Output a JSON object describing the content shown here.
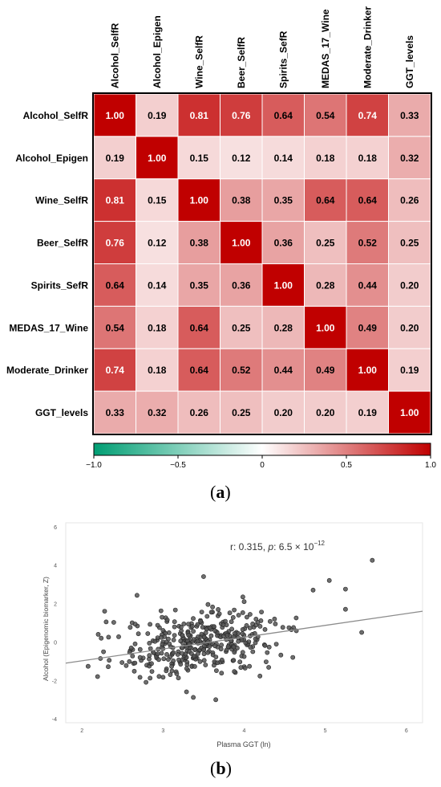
{
  "panel_a_label": {
    "open": "(",
    "letter": "a",
    "close": ")"
  },
  "panel_b_label": {
    "open": "(",
    "letter": "b",
    "close": ")"
  },
  "chart_data": [
    {
      "type": "heatmap",
      "variables": [
        "Alcohol_SelfR",
        "Alcohol_Epigen",
        "Wine_SelfR",
        "Beer_SelfR",
        "Spirits_SefR",
        "MEDAS_17_Wine",
        "Moderate_Drinker",
        "GGT_levels"
      ],
      "column_labels": [
        "Alcohol_SelfR",
        "Alcohol_Epigen",
        "Wine_SelfR",
        "Beer_SelfR",
        "Spirits_SefR",
        "MEDAS_17_Wine",
        "Moderate_Drinker",
        "GGT_levels"
      ],
      "row_labels": [
        "Alcohol_SelfR",
        "Alcohol_Epigen",
        "Wine_SelfR",
        "Beer_SelfR",
        "Spirits_SefR",
        "MEDAS_17_Wine",
        "Moderate_Drinker",
        "GGT_levels"
      ],
      "values": [
        [
          1.0,
          0.19,
          0.81,
          0.76,
          0.64,
          0.54,
          0.74,
          0.33
        ],
        [
          0.19,
          1.0,
          0.15,
          0.12,
          0.14,
          0.18,
          0.18,
          0.32
        ],
        [
          0.81,
          0.15,
          1.0,
          0.38,
          0.35,
          0.64,
          0.64,
          0.26
        ],
        [
          0.76,
          0.12,
          0.38,
          1.0,
          0.36,
          0.25,
          0.52,
          0.25
        ],
        [
          0.64,
          0.14,
          0.35,
          0.36,
          1.0,
          0.28,
          0.44,
          0.2
        ],
        [
          0.54,
          0.18,
          0.64,
          0.25,
          0.28,
          1.0,
          0.49,
          0.2
        ],
        [
          0.74,
          0.18,
          0.64,
          0.52,
          0.44,
          0.49,
          1.0,
          0.19
        ],
        [
          0.33,
          0.32,
          0.26,
          0.25,
          0.2,
          0.2,
          0.19,
          1.0
        ]
      ],
      "value_labels": [
        [
          "1.00",
          "0.19",
          "0.81",
          "0.76",
          "0.64",
          "0.54",
          "0.74",
          "0.33"
        ],
        [
          "0.19",
          "1.00",
          "0.15",
          "0.12",
          "0.14",
          "0.18",
          "0.18",
          "0.32"
        ],
        [
          "0.81",
          "0.15",
          "1.00",
          "0.38",
          "0.35",
          "0.64",
          "0.64",
          "0.26"
        ],
        [
          "0.76",
          "0.12",
          "0.38",
          "1.00",
          "0.36",
          "0.25",
          "0.52",
          "0.25"
        ],
        [
          "0.64",
          "0.14",
          "0.35",
          "0.36",
          "1.00",
          "0.28",
          "0.44",
          "0.20"
        ],
        [
          "0.54",
          "0.18",
          "0.64",
          "0.25",
          "0.28",
          "1.00",
          "0.49",
          "0.20"
        ],
        [
          "0.74",
          "0.18",
          "0.64",
          "0.52",
          "0.44",
          "0.49",
          "1.00",
          "0.19"
        ],
        [
          "0.33",
          "0.32",
          "0.26",
          "0.25",
          "0.20",
          "0.20",
          "0.19",
          "1.00"
        ]
      ],
      "colorbar": {
        "range": [
          -1.0,
          1.0
        ],
        "ticks": [
          -1.0,
          -0.5,
          0,
          0.5,
          1.0
        ],
        "tick_labels": [
          "−1.0",
          "−0.5",
          "0",
          "0.5",
          "1.0"
        ],
        "colors": {
          "negative": "#009E73",
          "zero": "#ffffff",
          "positive": "#C00000"
        }
      }
    },
    {
      "type": "scatter",
      "annotation": "r: 0.315, p: 6.5 × 10⁻¹²",
      "annotation_parts": {
        "r_label": "r",
        "r_value": ": 0.315, ",
        "p_label": "p",
        "p_value": ": 6.5 × 10",
        "p_exp": "−12"
      },
      "xlabel": "Plasma GGT (ln)",
      "ylabel": "Alcohol (Epigenomic biomarker, Z)",
      "xlim": [
        1.8,
        6.2
      ],
      "ylim": [
        -4.2,
        6.2
      ],
      "x_ticks": [
        2,
        3,
        4,
        5,
        6
      ],
      "x_tick_labels": [
        "2",
        "3",
        "4",
        "5",
        "6"
      ],
      "y_ticks": [
        -4,
        -2,
        0,
        2,
        4,
        6
      ],
      "y_tick_labels": [
        "-4",
        "-2",
        "0",
        "2",
        "4",
        "6"
      ],
      "fit_line": {
        "x": [
          1.8,
          6.2
        ],
        "y": [
          -1.1,
          1.6
        ]
      },
      "colors": {
        "points": "#555555",
        "point_edge": "#222222",
        "line": "#8c8c8c"
      },
      "point_count": 380,
      "notes": "Approximately 380 points, bulk centred near x 3.4 with y between -2 and 2; sparse high-GGT points up to x 5.6, y 4.2."
    }
  ]
}
